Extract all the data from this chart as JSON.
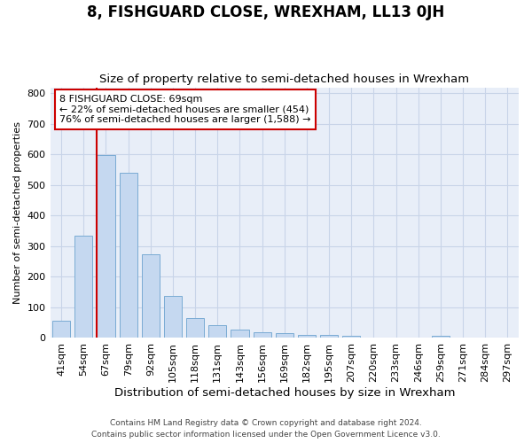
{
  "title": "8, FISHGUARD CLOSE, WREXHAM, LL13 0JH",
  "subtitle": "Size of property relative to semi-detached houses in Wrexham",
  "xlabel": "Distribution of semi-detached houses by size in Wrexham",
  "ylabel": "Number of semi-detached properties",
  "footer1": "Contains HM Land Registry data © Crown copyright and database right 2024.",
  "footer2": "Contains public sector information licensed under the Open Government Licence v3.0.",
  "bins": [
    "41sqm",
    "54sqm",
    "67sqm",
    "79sqm",
    "92sqm",
    "105sqm",
    "118sqm",
    "131sqm",
    "143sqm",
    "156sqm",
    "169sqm",
    "182sqm",
    "195sqm",
    "207sqm",
    "220sqm",
    "233sqm",
    "246sqm",
    "259sqm",
    "271sqm",
    "284sqm",
    "297sqm"
  ],
  "bar_values": [
    55,
    335,
    598,
    540,
    275,
    138,
    65,
    42,
    28,
    20,
    15,
    10,
    10,
    8,
    0,
    0,
    0,
    8,
    0,
    0,
    0
  ],
  "bar_color": "#c5d8f0",
  "bar_edge_color": "#7aabd4",
  "property_size_label": "8 FISHGUARD CLOSE: 69sqm",
  "pct_smaller": 22,
  "pct_smaller_n": 454,
  "pct_larger": 76,
  "pct_larger_n": 1588,
  "vline_color": "#cc0000",
  "vline_bin_index": 2,
  "ylim": [
    0,
    820
  ],
  "yticks": [
    0,
    100,
    200,
    300,
    400,
    500,
    600,
    700,
    800
  ],
  "annotation_box_color": "#ffffff",
  "annotation_box_edge_color": "#cc0000",
  "grid_color": "#c8d4e8",
  "bg_color": "#e8eef8",
  "title_fontsize": 12,
  "subtitle_fontsize": 9.5,
  "xlabel_fontsize": 9.5,
  "ylabel_fontsize": 8,
  "tick_fontsize": 8,
  "footer_fontsize": 6.5
}
